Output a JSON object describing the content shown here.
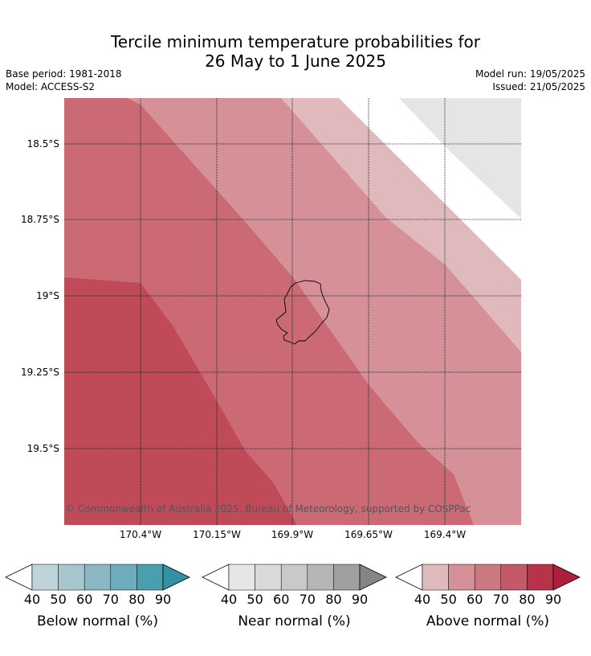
{
  "title_line1": "Tercile minimum temperature probabilities for",
  "title_line2": "26 May to 1 June 2025",
  "base_period": "Base period: 1981-2018",
  "model": "Model: ACCESS-S2",
  "model_run": "Model run: 19/05/2025",
  "issued": "Issued: 21/05/2025",
  "copyright": "© Commonwealth of Australia 2025, Bureau of Meteorology, supported by COSPPac",
  "lat_labels": [
    "18.5°S",
    "18.75°S",
    "19°S",
    "19.25°S",
    "19.5°S"
  ],
  "lon_labels": [
    "170.4°W",
    "170.15°W",
    "169.9°W",
    "169.65°W",
    "169.4°W"
  ],
  "colors": {
    "above_40": "#e0b9bc",
    "above_50": "#d69198",
    "above_60": "#cb6a74",
    "above_70": "#c04a58",
    "near_40": "#e5e5e5",
    "island_outline": "#000000"
  },
  "colorbars": [
    {
      "label": "Below normal (%)",
      "ticks": [
        "40",
        "50",
        "60",
        "70",
        "80",
        "90"
      ],
      "colors": [
        "#bfd3da",
        "#a6c6cc",
        "#8ab7c2",
        "#6dadbb",
        "#4a9fae"
      ],
      "arrow": "#3391a4"
    },
    {
      "label": "Near normal (%)",
      "ticks": [
        "40",
        "50",
        "60",
        "70",
        "80",
        "90"
      ],
      "colors": [
        "#e6e6e6",
        "#d9d9d9",
        "#c9c9c9",
        "#b5b5b5",
        "#a0a0a0"
      ],
      "arrow": "#858585"
    },
    {
      "label": "Above normal (%)",
      "ticks": [
        "40",
        "50",
        "60",
        "70",
        "80",
        "90"
      ],
      "colors": [
        "#e0b9bc",
        "#d69198",
        "#cb7980",
        "#c45a67",
        "#b7334a"
      ],
      "arrow": "#ad1f3c"
    }
  ]
}
